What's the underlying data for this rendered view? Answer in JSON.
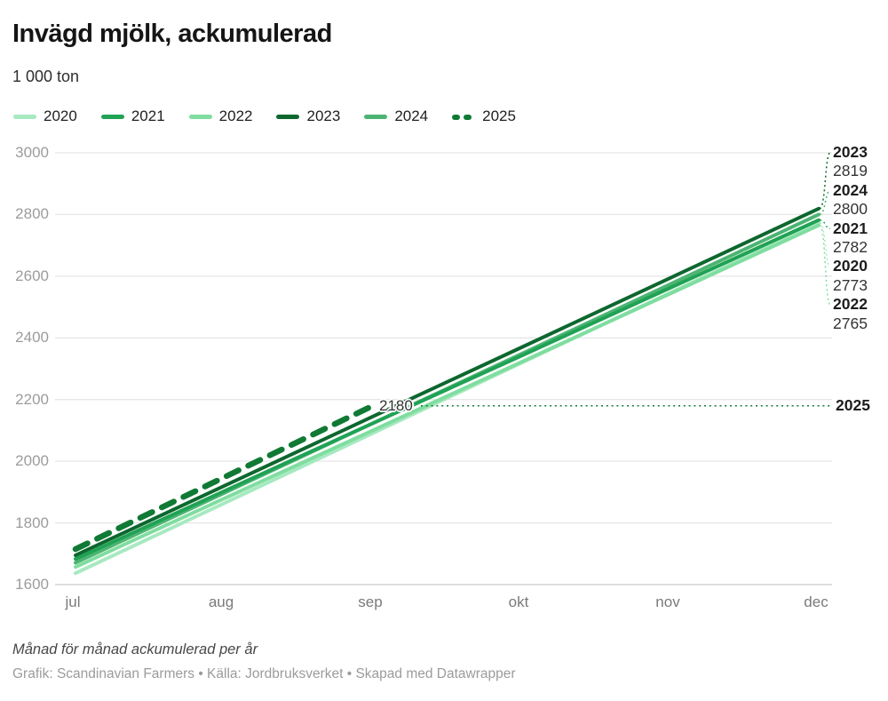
{
  "header": {
    "title": "Invägd mjölk, ackumulerad",
    "subtitle": "1 000 ton"
  },
  "footer": {
    "note": "Månad för månad ackumulerad per år",
    "credits": "Grafik: Scandinavian Farmers • Källa: Jordbruksverket • Skapad med Datawrapper"
  },
  "chart_data": {
    "type": "line",
    "x": [
      "jul",
      "aug",
      "sep",
      "okt",
      "nov",
      "dec"
    ],
    "yticks": [
      3000,
      2800,
      2600,
      2400,
      2200,
      2000,
      1800,
      1600
    ],
    "ylim": [
      1600,
      3000
    ],
    "grid": "horizontal",
    "legend_position": "top",
    "series": [
      {
        "name": "2020",
        "color": "#a7e9c0",
        "dashed": false,
        "values": [
          1637,
          1864,
          2091,
          2319,
          2546,
          2773
        ],
        "end_label": "2773"
      },
      {
        "name": "2021",
        "color": "#20a254",
        "dashed": false,
        "values": [
          1683,
          1903,
          2123,
          2342,
          2562,
          2782
        ],
        "end_label": "2782"
      },
      {
        "name": "2022",
        "color": "#7fdd9f",
        "dashed": false,
        "values": [
          1657,
          1879,
          2100,
          2322,
          2543,
          2765
        ],
        "end_label": "2765"
      },
      {
        "name": "2023",
        "color": "#0d672e",
        "dashed": false,
        "values": [
          1695,
          1920,
          2145,
          2369,
          2594,
          2819
        ],
        "end_label": "2819"
      },
      {
        "name": "2024",
        "color": "#4cb472",
        "dashed": false,
        "values": [
          1671,
          1897,
          2123,
          2348,
          2574,
          2800
        ],
        "end_label": "2800"
      },
      {
        "name": "2025",
        "color": "#107a35",
        "dashed": true,
        "values": [
          1715,
          1948,
          2180
        ],
        "end_label": "2180"
      }
    ],
    "annotations_right": [
      {
        "year": "2023",
        "value": "2819"
      },
      {
        "year": "2024",
        "value": "2800"
      },
      {
        "year": "2021",
        "value": "2782"
      },
      {
        "year": "2020",
        "value": "2773"
      },
      {
        "year": "2022",
        "value": "2765"
      }
    ],
    "callout": {
      "value": "2180",
      "year": "2025"
    }
  },
  "style": {
    "grid_color": "#e6e6e6",
    "axis_color": "#c9c9c9"
  }
}
